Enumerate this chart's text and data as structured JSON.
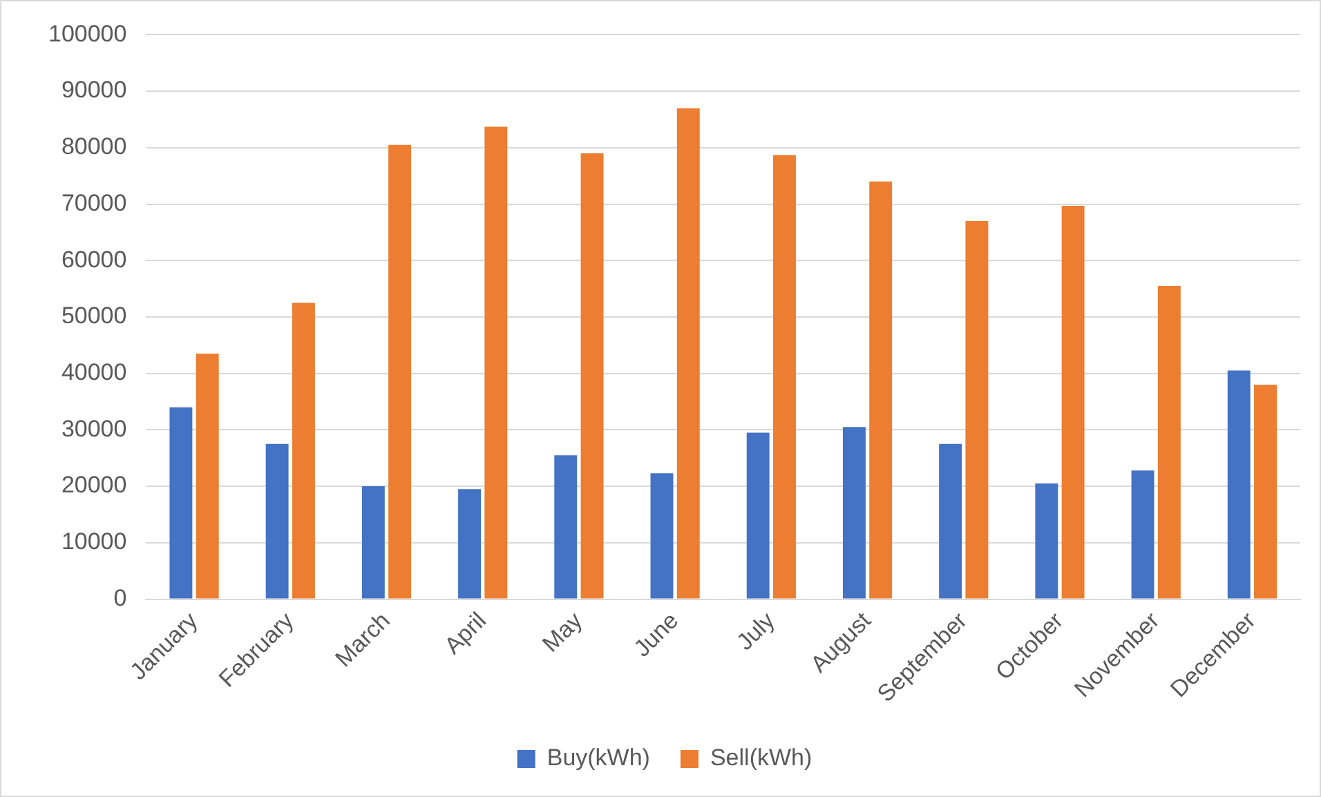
{
  "chart_data": {
    "type": "bar",
    "categories": [
      "January",
      "February",
      "March",
      "April",
      "May",
      "June",
      "July",
      "August",
      "September",
      "October",
      "November",
      "December"
    ],
    "series": [
      {
        "name": "Buy(kWh)",
        "color": "#4472c4",
        "values": [
          34000,
          27500,
          20000,
          19500,
          25500,
          22300,
          29500,
          30500,
          27500,
          20500,
          22800,
          40500
        ]
      },
      {
        "name": "Sell(kWh)",
        "color": "#ed7d31",
        "values": [
          43500,
          52500,
          80500,
          83700,
          79000,
          87000,
          78700,
          74000,
          67000,
          69700,
          55500,
          38000
        ]
      }
    ],
    "ylim": [
      0,
      100000
    ],
    "yticks": [
      0,
      10000,
      20000,
      30000,
      40000,
      50000,
      60000,
      70000,
      80000,
      90000,
      100000
    ],
    "grid": "y",
    "legend": "bottom"
  }
}
